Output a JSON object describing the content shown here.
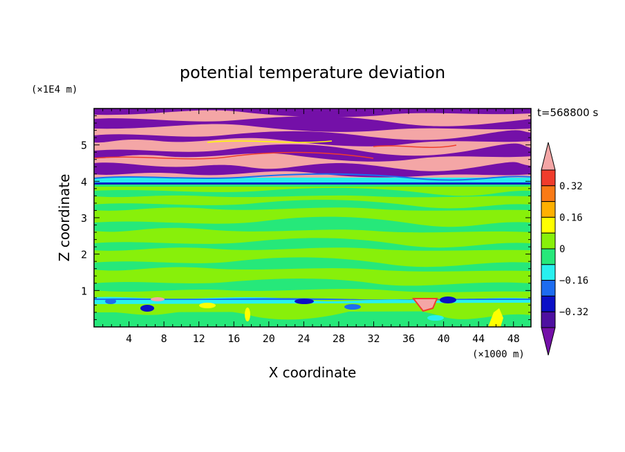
{
  "chart_data": {
    "type": "heatmap",
    "title": "potential temperature deviation",
    "xlabel": "X coordinate",
    "ylabel": "Z coordinate",
    "x_unit": "(×1000 m)",
    "y_unit": "(×1E4 m)",
    "time_label": "t=568800 s",
    "xlim": [
      0,
      50
    ],
    "ylim": [
      0,
      6
    ],
    "x_ticks": [
      "4",
      "8",
      "12",
      "16",
      "20",
      "24",
      "28",
      "32",
      "36",
      "40",
      "44",
      "48"
    ],
    "y_ticks": [
      "1",
      "2",
      "3",
      "4",
      "5"
    ],
    "colorbar": {
      "levels": [
        -0.4,
        -0.32,
        -0.24,
        -0.16,
        -0.08,
        0,
        0.08,
        0.16,
        0.24,
        0.32,
        0.4
      ],
      "labels": [
        "0.32",
        "0.16",
        "0",
        "−0.16",
        "−0.32"
      ],
      "colors_top_to_bottom": [
        "#f4a6a6",
        "#f03c2c",
        "#fa7a16",
        "#ffb000",
        "#ffff00",
        "#88f00a",
        "#26e87a",
        "#28f0ef",
        "#1d6cf0",
        "#0b10c6",
        "#4e10a0",
        "#7410a8"
      ]
    },
    "field_description_bands": [
      {
        "z_range": [
          0,
          0.8
        ],
        "dominant": "green with scattered blue and pink anomalies"
      },
      {
        "z_range": [
          0.8,
          3.9
        ],
        "dominant": "alternating green layers"
      },
      {
        "z_range": [
          3.9,
          4.0
        ],
        "dominant": "cyan/blue interface"
      },
      {
        "z_range": [
          4.0,
          6.0
        ],
        "dominant": "alternating pink and purple layers"
      }
    ]
  }
}
